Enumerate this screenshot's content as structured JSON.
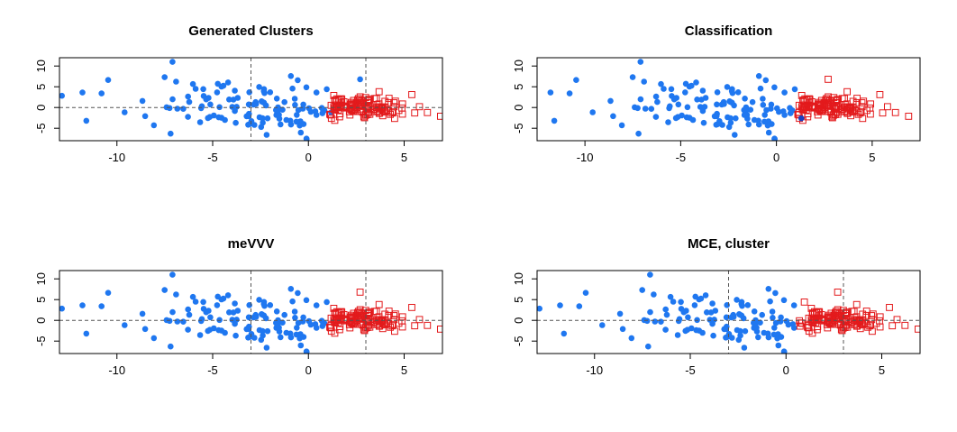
{
  "colors": {
    "cluster_a": "#1f77f0",
    "cluster_b": "#e31a1c",
    "misclassified": "#1a3fbf",
    "frame": "#000000",
    "reference_line": "#555555"
  },
  "chart_data": [
    {
      "type": "scatter",
      "title": "Generated Clusters",
      "xlim": [
        -13,
        7
      ],
      "ylim": [
        -8,
        12
      ],
      "xticks": [
        "-10",
        "-5",
        "0",
        "5"
      ],
      "yticks": [
        "-5",
        "0",
        "5",
        "10"
      ],
      "grid": false,
      "hline_y": 0,
      "vlines_x": [
        -3,
        3
      ],
      "cluster_split_x": 1.0,
      "misclassified_points": 0
    },
    {
      "type": "scatter",
      "title": "Classification",
      "xlim": [
        -12.5,
        7.5
      ],
      "ylim": [
        -8,
        12
      ],
      "xticks": [
        "-10",
        "-5",
        "0",
        "5"
      ],
      "yticks": [
        "-5",
        "0",
        "5",
        "10"
      ],
      "grid": false,
      "hline_y": null,
      "vlines_x": [],
      "cluster_split_x": 1.0,
      "misclassified_points": 1
    },
    {
      "type": "scatter",
      "title": "meVVV",
      "xlim": [
        -13,
        7
      ],
      "ylim": [
        -8,
        12
      ],
      "xticks": [
        "-10",
        "-5",
        "0",
        "5"
      ],
      "yticks": [
        "-5",
        "0",
        "5",
        "10"
      ],
      "grid": false,
      "hline_y": 0,
      "vlines_x": [
        -3,
        3
      ],
      "cluster_split_x": 1.0,
      "misclassified_points": 0
    },
    {
      "type": "scatter",
      "title": "MCE, cluster",
      "xlim": [
        -13,
        7
      ],
      "ylim": [
        -8,
        12
      ],
      "xticks": [
        "-10",
        "-5",
        "0",
        "5"
      ],
      "yticks": [
        "-5",
        "0",
        "5",
        "10"
      ],
      "grid": false,
      "hline_y": 0,
      "vlines_x": [
        -3,
        3
      ],
      "cluster_split_x": 0.5,
      "misclassified_points": 0
    }
  ]
}
